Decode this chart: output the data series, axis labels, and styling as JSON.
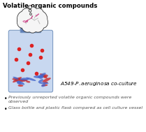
{
  "title": "Volatile organic compounds",
  "bullet1": "Previously unreported volatile organic compounds were observed",
  "bullet2": "Glass bottle and plastic flask compared as cell culture vessel",
  "bottle_color": "#c8d8f0",
  "bottle_neck_color": "#6080b8",
  "bottle_cap_color": "#3555a0",
  "red_dot_color": "#dd2222",
  "blue_stripe_color": "#4466cc",
  "red_stripe_color": "#cc2222",
  "cloud_color": "#f5f5f5",
  "cloud_edge_color": "#333333",
  "dashed_line_color": "#dd2222",
  "molecule_color_pink": "#cc4488",
  "molecule_color_light": "#bbbbbb",
  "fig_width": 2.09,
  "fig_height": 1.89,
  "dpi": 100
}
